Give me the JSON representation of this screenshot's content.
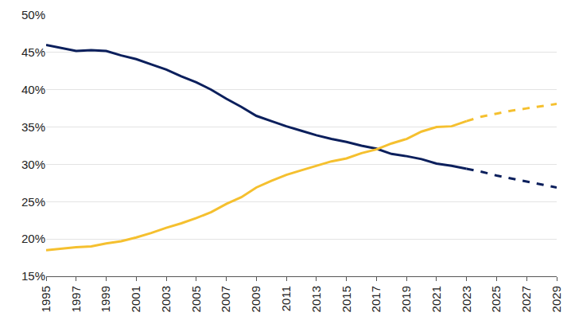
{
  "chart_data": {
    "type": "line",
    "x": [
      1995,
      1996,
      1997,
      1998,
      1999,
      2000,
      2001,
      2002,
      2003,
      2004,
      2005,
      2006,
      2007,
      2008,
      2009,
      2010,
      2011,
      2012,
      2013,
      2014,
      2015,
      2016,
      2017,
      2018,
      2019,
      2020,
      2021,
      2022,
      2023,
      2024,
      2025,
      2026,
      2027,
      2028,
      2029
    ],
    "series": [
      {
        "color": "#0b1f5c",
        "line_style": "solid",
        "values": [
          46.0,
          45.6,
          45.2,
          45.3,
          45.2,
          44.6,
          44.1,
          43.4,
          42.7,
          41.8,
          41.0,
          40.0,
          38.8,
          37.7,
          36.5,
          35.8,
          35.1,
          34.5,
          33.9,
          33.4,
          33.0,
          32.5,
          32.1,
          31.4,
          31.1,
          30.7,
          30.1,
          29.8,
          29.4,
          null,
          null,
          null,
          null,
          null,
          null
        ]
      },
      {
        "color": "#0b1f5c",
        "line_style": "dashed",
        "values": [
          null,
          null,
          null,
          null,
          null,
          null,
          null,
          null,
          null,
          null,
          null,
          null,
          null,
          null,
          null,
          null,
          null,
          null,
          null,
          null,
          null,
          null,
          null,
          null,
          null,
          null,
          null,
          null,
          29.4,
          29.0,
          28.5,
          28.1,
          27.7,
          27.3,
          26.9
        ]
      },
      {
        "color": "#f5c02f",
        "line_style": "solid",
        "values": [
          18.5,
          18.7,
          18.9,
          19.0,
          19.4,
          19.7,
          20.2,
          20.8,
          21.5,
          22.1,
          22.8,
          23.6,
          24.7,
          25.6,
          26.9,
          27.8,
          28.6,
          29.2,
          29.8,
          30.4,
          30.8,
          31.5,
          32.0,
          32.8,
          33.4,
          34.4,
          35.0,
          35.1,
          35.8,
          null,
          null,
          null,
          null,
          null,
          null
        ]
      },
      {
        "color": "#f5c02f",
        "line_style": "dashed",
        "values": [
          null,
          null,
          null,
          null,
          null,
          null,
          null,
          null,
          null,
          null,
          null,
          null,
          null,
          null,
          null,
          null,
          null,
          null,
          null,
          null,
          null,
          null,
          null,
          null,
          null,
          null,
          null,
          null,
          35.8,
          36.4,
          36.8,
          37.2,
          37.5,
          37.8,
          38.1
        ]
      }
    ],
    "xlim": [
      1995,
      2029
    ],
    "xticks": [
      1995,
      1997,
      1999,
      2001,
      2003,
      2005,
      2007,
      2009,
      2011,
      2013,
      2015,
      2017,
      2019,
      2021,
      2023,
      2025,
      2027,
      2029
    ],
    "ylim": [
      15,
      50
    ],
    "yticks": [
      {
        "value": 15,
        "label": "15%"
      },
      {
        "value": 20,
        "label": "20%"
      },
      {
        "value": 25,
        "label": "25%"
      },
      {
        "value": 30,
        "label": "30%"
      },
      {
        "value": 35,
        "label": "35%"
      },
      {
        "value": 40,
        "label": "40%"
      },
      {
        "value": 45,
        "label": "45%"
      },
      {
        "value": 50,
        "label": "50%"
      }
    ],
    "grid": true
  }
}
